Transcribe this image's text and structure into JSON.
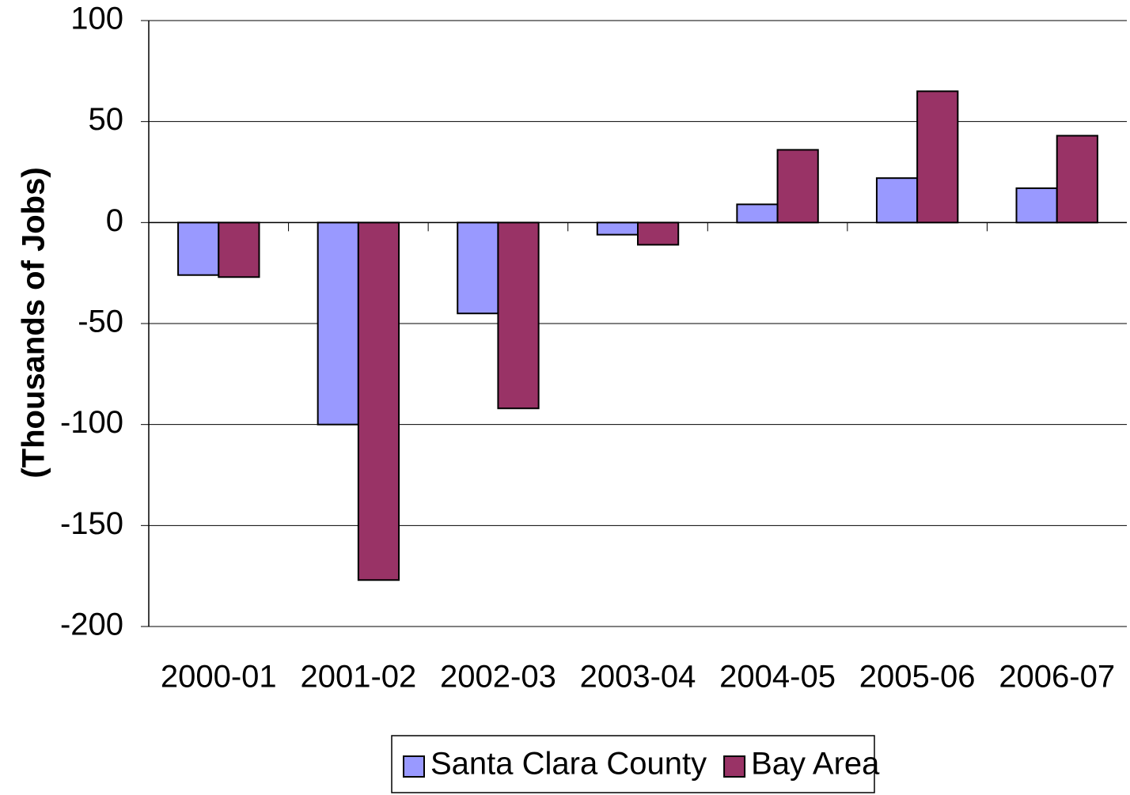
{
  "chart_data": {
    "type": "bar",
    "y_label": "(Thousands of Jobs)",
    "categories": [
      "2000-01",
      "2001-02",
      "2002-03",
      "2003-04",
      "2004-05",
      "2005-06",
      "2006-07"
    ],
    "series": [
      {
        "name": "Santa Clara County",
        "color": "#9999ff",
        "values": [
          -26,
          -100,
          -45,
          -6,
          9,
          22,
          17
        ]
      },
      {
        "name": "Bay Area",
        "color": "#993366",
        "values": [
          -27,
          -177,
          -92,
          -11,
          36,
          65,
          43
        ]
      }
    ],
    "ylim": [
      -200,
      100
    ],
    "yticks": [
      -200,
      -150,
      -100,
      -50,
      0,
      50,
      100
    ],
    "grid": true,
    "legend": "bottom"
  }
}
